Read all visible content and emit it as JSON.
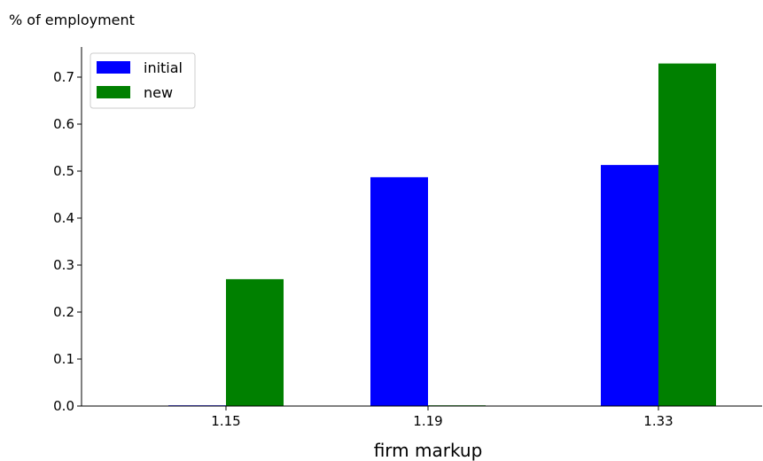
{
  "chart_data": {
    "type": "bar",
    "title": "",
    "ylabel": "% of employment",
    "xlabel": "firm markup",
    "categories": [
      "1.15",
      "1.19",
      "1.33"
    ],
    "series": [
      {
        "name": "initial",
        "color": "#0000ff",
        "values": [
          0.0,
          0.487,
          0.513
        ]
      },
      {
        "name": "new",
        "color": "#008000",
        "values": [
          0.27,
          0.0,
          0.729
        ]
      }
    ],
    "ylim": [
      0,
      0.77
    ],
    "yticks": [
      "0.0",
      "0.1",
      "0.2",
      "0.3",
      "0.4",
      "0.5",
      "0.6",
      "0.7"
    ],
    "legend_position": "top-left",
    "grid": false
  }
}
